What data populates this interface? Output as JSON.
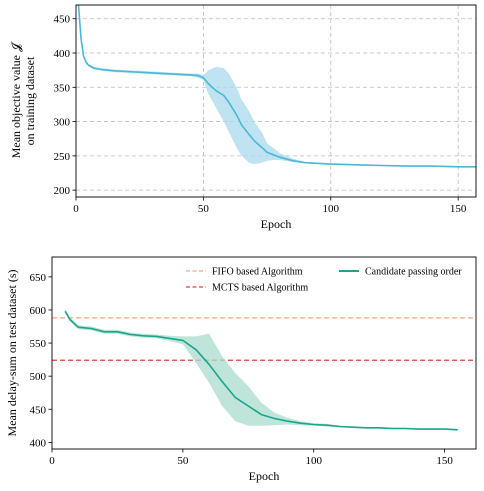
{
  "chart_data": [
    {
      "type": "line",
      "xlabel": "Epoch",
      "ylabel_lines": [
        "Mean objective value 𝓙",
        "on training dataset"
      ],
      "xlim": [
        0,
        157
      ],
      "ylim": [
        190,
        470
      ],
      "xticks": [
        0,
        50,
        100,
        150
      ],
      "yticks": [
        200,
        250,
        300,
        350,
        400,
        450
      ],
      "grid": true,
      "series": [
        {
          "color": "#4ab8d8",
          "band_color": "#a9daec",
          "x": [
            1,
            2,
            3,
            4,
            5,
            7,
            10,
            15,
            20,
            30,
            40,
            45,
            48,
            50,
            52,
            55,
            58,
            60,
            63,
            65,
            68,
            70,
            73,
            75,
            78,
            80,
            85,
            90,
            100,
            110,
            120,
            130,
            140,
            150,
            157
          ],
          "y": [
            470,
            420,
            395,
            386,
            382,
            378,
            376,
            374,
            373,
            371,
            369,
            368,
            367,
            364,
            355,
            345,
            338,
            328,
            310,
            295,
            281,
            272,
            262,
            255,
            251,
            248,
            243,
            240,
            238,
            237,
            236,
            235,
            235,
            234,
            234
          ],
          "lo": [
            470,
            418,
            393,
            384,
            380,
            376,
            374,
            372,
            371,
            369,
            367,
            366,
            364,
            360,
            340,
            320,
            300,
            285,
            262,
            250,
            240,
            238,
            240,
            243,
            244,
            244,
            241,
            239,
            237,
            236,
            235,
            234,
            234,
            233,
            233
          ],
          "hi": [
            470,
            422,
            397,
            388,
            384,
            380,
            378,
            376,
            375,
            373,
            371,
            370,
            370,
            368,
            375,
            380,
            378,
            370,
            350,
            332,
            315,
            300,
            284,
            268,
            260,
            254,
            246,
            241,
            239,
            238,
            237,
            236,
            236,
            235,
            235
          ]
        }
      ]
    },
    {
      "type": "line",
      "xlabel": "Epoch",
      "ylabel_lines": [
        "Mean delay-sum on test dataset (s)"
      ],
      "xlim": [
        0,
        162
      ],
      "ylim": [
        390,
        680
      ],
      "xticks": [
        0,
        50,
        100,
        150
      ],
      "yticks": [
        400,
        450,
        500,
        550,
        600,
        650
      ],
      "grid": false,
      "hlines": [
        {
          "name": "FIFO based Algorithm",
          "y": 588,
          "color": "#f4a27c"
        },
        {
          "name": "MCTS based Algorithm",
          "y": 524,
          "color": "#d9433a"
        }
      ],
      "series": [
        {
          "name": "Candidate passing order",
          "color": "#1aa58a",
          "band_color": "#a9dccd",
          "x": [
            5,
            7,
            10,
            15,
            20,
            25,
            30,
            35,
            40,
            45,
            50,
            55,
            60,
            65,
            70,
            75,
            80,
            85,
            90,
            95,
            100,
            105,
            110,
            115,
            120,
            125,
            130,
            135,
            140,
            145,
            150,
            155
          ],
          "y": [
            598,
            585,
            574,
            572,
            567,
            567,
            563,
            561,
            560,
            557,
            554,
            540,
            518,
            492,
            468,
            455,
            442,
            436,
            432,
            429,
            427,
            426,
            424,
            423,
            422,
            422,
            421,
            421,
            420,
            420,
            420,
            419
          ],
          "lo": [
            595,
            582,
            571,
            569,
            564,
            564,
            560,
            558,
            557,
            553,
            548,
            520,
            490,
            455,
            432,
            425,
            425,
            426,
            427,
            426,
            425,
            424,
            423,
            422,
            421,
            421,
            420,
            420,
            419,
            419,
            419,
            418
          ],
          "hi": [
            602,
            588,
            577,
            575,
            570,
            570,
            566,
            564,
            563,
            561,
            560,
            560,
            564,
            530,
            505,
            485,
            460,
            445,
            437,
            432,
            429,
            428,
            425,
            424,
            423,
            423,
            422,
            422,
            421,
            421,
            421,
            420
          ]
        }
      ]
    }
  ]
}
